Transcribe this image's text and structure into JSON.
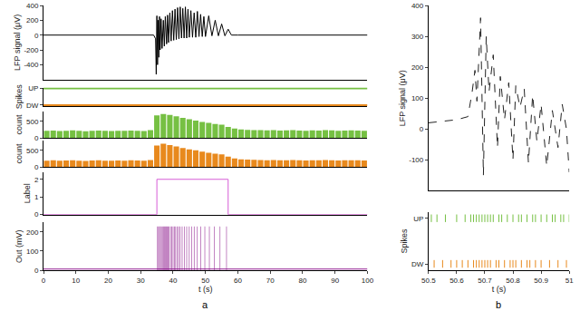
{
  "chart_data": [
    {
      "type": "line",
      "ylabel": "LFP signal (μV)",
      "xlim": [
        0,
        100
      ],
      "ylim": [
        -600,
        400
      ],
      "yticks": [
        -400,
        -200,
        0,
        200,
        400
      ],
      "tick_labels": "y",
      "color": "#000000",
      "x": [
        0,
        10,
        20,
        30,
        34,
        34.6,
        34.8,
        35.0,
        35.2,
        35.4,
        35.6,
        35.8,
        36,
        36.3,
        36.6,
        37,
        37.3,
        37.6,
        38,
        38.3,
        38.6,
        39,
        39.4,
        39.8,
        40.2,
        40.6,
        41,
        41.4,
        41.8,
        42.2,
        42.6,
        43,
        43.4,
        43.8,
        44.2,
        44.6,
        45,
        45.5,
        46,
        46.5,
        47,
        47.5,
        48,
        48.5,
        49,
        49.5,
        50,
        51,
        52,
        53,
        54,
        55,
        56,
        57,
        58,
        60,
        70,
        80,
        90,
        100
      ],
      "values": [
        0,
        0,
        0,
        0,
        0,
        -50,
        -530,
        260,
        -400,
        200,
        -300,
        250,
        -200,
        220,
        -180,
        200,
        -150,
        250,
        -120,
        270,
        -100,
        300,
        -80,
        330,
        -70,
        350,
        -60,
        370,
        -50,
        380,
        -40,
        360,
        -40,
        380,
        -40,
        350,
        -30,
        330,
        -30,
        300,
        -30,
        320,
        -20,
        280,
        -20,
        250,
        -20,
        260,
        -10,
        200,
        -10,
        150,
        -10,
        80,
        0,
        0,
        0,
        0,
        0,
        0
      ]
    },
    {
      "type": "raster",
      "ylabel": "Spikes",
      "xlim": [
        0,
        100
      ],
      "tick_labels": "y",
      "categories": [
        "DW",
        "UP"
      ],
      "series": [
        {
          "name": "UP",
          "color": "#76c043",
          "x": [
            0,
            100
          ],
          "line_style": "solid"
        },
        {
          "name": "DW",
          "color": "#e8891d",
          "x": [
            0,
            100
          ],
          "line_style": "solid"
        }
      ]
    },
    {
      "type": "bar",
      "ylabel": "count",
      "xlim": [
        0,
        100
      ],
      "ylim": [
        0,
        800
      ],
      "yticks": [
        0,
        500
      ],
      "tick_labels": "y",
      "color": "#76c043",
      "x": [
        1,
        3,
        5,
        7,
        9,
        11,
        13,
        15,
        17,
        19,
        21,
        23,
        25,
        27,
        29,
        31,
        33,
        35,
        37,
        39,
        41,
        43,
        45,
        47,
        49,
        51,
        53,
        55,
        57,
        59,
        61,
        63,
        65,
        67,
        69,
        71,
        73,
        75,
        77,
        79,
        81,
        83,
        85,
        87,
        89,
        91,
        93,
        95,
        97,
        99
      ],
      "values": [
        210,
        220,
        205,
        215,
        225,
        210,
        200,
        215,
        220,
        210,
        205,
        215,
        210,
        220,
        215,
        205,
        230,
        680,
        720,
        690,
        650,
        600,
        560,
        520,
        480,
        450,
        420,
        400,
        330,
        280,
        250,
        240,
        235,
        230,
        225,
        230,
        220,
        225,
        230,
        220,
        215,
        225,
        220,
        230,
        225,
        215,
        220,
        225,
        220,
        215
      ]
    },
    {
      "type": "bar",
      "ylabel": "count",
      "xlim": [
        0,
        100
      ],
      "ylim": [
        0,
        800
      ],
      "yticks": [
        0,
        500
      ],
      "tick_labels": "y",
      "color": "#e8891d",
      "x": [
        1,
        3,
        5,
        7,
        9,
        11,
        13,
        15,
        17,
        19,
        21,
        23,
        25,
        27,
        29,
        31,
        33,
        35,
        37,
        39,
        41,
        43,
        45,
        47,
        49,
        51,
        53,
        55,
        57,
        59,
        61,
        63,
        65,
        67,
        69,
        71,
        73,
        75,
        77,
        79,
        81,
        83,
        85,
        87,
        89,
        91,
        93,
        95,
        97,
        99
      ],
      "values": [
        190,
        200,
        185,
        195,
        205,
        190,
        180,
        195,
        200,
        190,
        185,
        195,
        190,
        200,
        195,
        185,
        210,
        650,
        700,
        660,
        620,
        570,
        530,
        500,
        460,
        430,
        400,
        380,
        310,
        260,
        230,
        220,
        215,
        210,
        205,
        210,
        200,
        205,
        210,
        200,
        195,
        205,
        200,
        210,
        205,
        195,
        200,
        205,
        200,
        195
      ]
    },
    {
      "type": "line",
      "ylabel": "Label",
      "xlim": [
        0,
        100
      ],
      "ylim": [
        0,
        2.4
      ],
      "yticks": [
        0,
        1,
        2
      ],
      "tick_labels": "y",
      "color": "#d65cd6",
      "x": [
        0,
        35,
        35,
        57,
        57,
        100
      ],
      "values": [
        0,
        0,
        2,
        2,
        0,
        0
      ]
    },
    {
      "type": "line",
      "ylabel": "Out (mV)",
      "xlabel": "t (s)",
      "xlim": [
        0,
        100
      ],
      "xticks": [
        0,
        10,
        20,
        30,
        40,
        50,
        60,
        70,
        80,
        90,
        100
      ],
      "ylim": [
        0,
        250
      ],
      "yticks": [
        0,
        100,
        200
      ],
      "annotations": [
        "a"
      ],
      "series": [
        {
          "type": "line",
          "color": "#8e1b8e",
          "x": [
            0,
            100
          ],
          "values": [
            6,
            6
          ]
        },
        {
          "type": "bar",
          "color": "#8e1b8e",
          "x": [
            35.2,
            35.5,
            35.8,
            36.1,
            36.4,
            36.7,
            37.0,
            37.3,
            37.6,
            37.9,
            38.2,
            38.5,
            38.8,
            39.2,
            39.6,
            40.0,
            40.4,
            40.8,
            41.2,
            41.7,
            42.2,
            42.8,
            43.5,
            44.2,
            45.0,
            45.7,
            46.5,
            47.5,
            48.5,
            49.8,
            51.2,
            52.8,
            54.5,
            56.5
          ],
          "values": [
            230,
            230,
            230,
            230,
            230,
            230,
            230,
            230,
            230,
            230,
            230,
            230,
            230,
            230,
            230,
            230,
            230,
            230,
            230,
            230,
            230,
            230,
            230,
            230,
            230,
            230,
            230,
            230,
            230,
            230,
            230,
            230,
            230,
            230
          ]
        }
      ]
    },
    {
      "type": "line",
      "ylabel": "LFP signal (μV)",
      "xlim": [
        50.5,
        51
      ],
      "ylim": [
        -200,
        400
      ],
      "yticks": [
        -100,
        0,
        100,
        200,
        300,
        400
      ],
      "tick_labels": "y",
      "color": "#222222",
      "line_style": "dashed",
      "x": [
        50.5,
        50.55,
        50.6,
        50.64,
        50.655,
        50.665,
        50.672,
        50.685,
        50.695,
        50.705,
        50.715,
        50.73,
        50.745,
        50.755,
        50.77,
        50.785,
        50.8,
        50.81,
        50.825,
        50.84,
        50.855,
        50.87,
        50.885,
        50.9,
        50.92,
        50.94,
        50.96,
        50.975,
        50.99,
        51
      ],
      "values": [
        20,
        25,
        30,
        40,
        120,
        190,
        90,
        360,
        -150,
        300,
        120,
        240,
        -60,
        170,
        30,
        150,
        -100,
        140,
        70,
        130,
        -110,
        110,
        -40,
        80,
        -120,
        60,
        -60,
        80,
        0,
        -140
      ]
    },
    {
      "type": "raster",
      "ylabel": "Spikes",
      "xlabel": "t (s)",
      "xlim": [
        50.5,
        51
      ],
      "xticks": [
        50.5,
        50.6,
        50.7,
        50.8,
        50.9,
        51
      ],
      "categories": [
        "DW",
        "UP"
      ],
      "annotations": [
        "b"
      ],
      "series": [
        {
          "name": "UP",
          "color": "#76c043",
          "marker": "line-ns",
          "x": [
            50.51,
            50.53,
            50.56,
            50.6,
            50.63,
            50.65,
            50.66,
            50.67,
            50.68,
            50.69,
            50.7,
            50.71,
            50.72,
            50.73,
            50.75,
            50.76,
            50.78,
            50.8,
            50.82,
            50.83,
            50.85,
            50.87,
            50.88,
            50.9,
            50.92,
            50.94,
            50.95,
            50.97,
            50.98,
            51
          ]
        },
        {
          "name": "DW",
          "color": "#e8891d",
          "marker": "line-ns",
          "x": [
            50.52,
            50.55,
            50.58,
            50.6,
            50.62,
            50.64,
            50.66,
            50.67,
            50.68,
            50.69,
            50.7,
            50.71,
            50.72,
            50.74,
            50.75,
            50.77,
            50.79,
            50.8,
            50.81,
            50.83,
            50.85,
            50.86,
            50.88,
            50.9,
            50.93,
            50.96,
            50.99
          ]
        }
      ]
    }
  ]
}
